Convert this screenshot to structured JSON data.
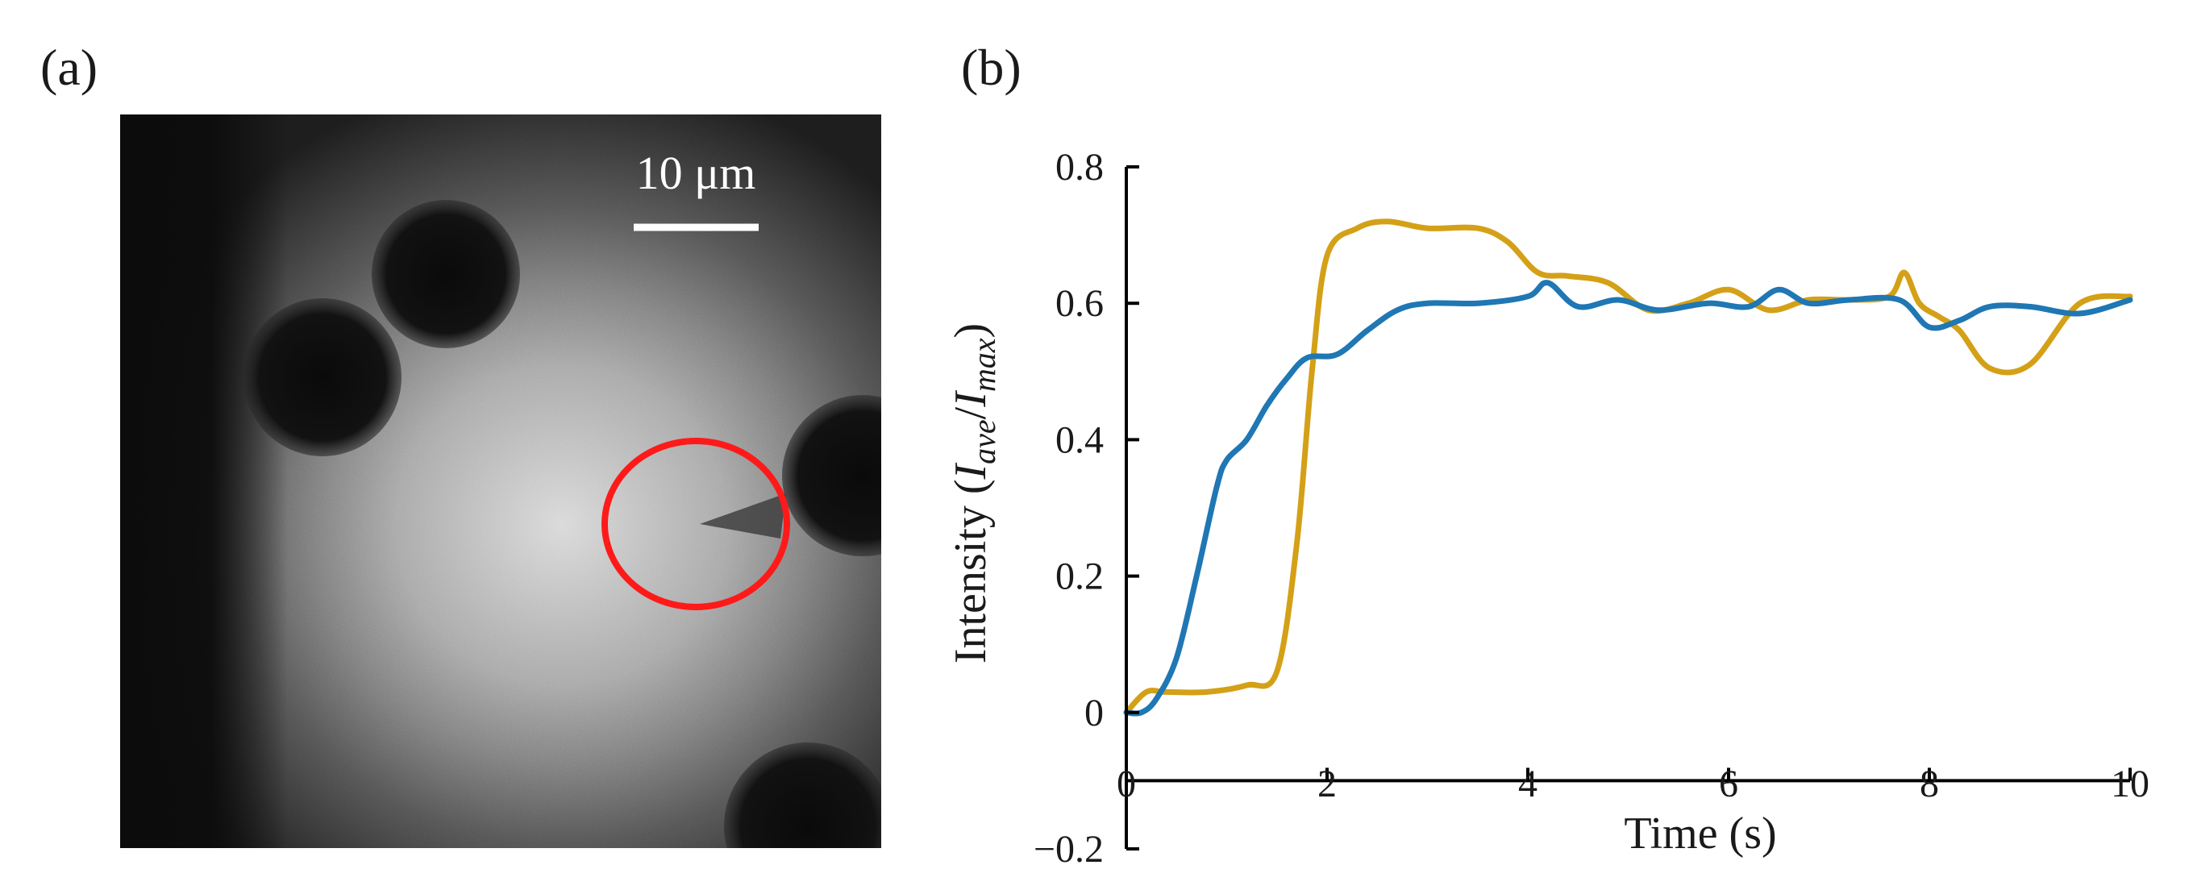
{
  "panel_a": {
    "label": "(a)",
    "scale_bar_text": "10 μm",
    "highlight_color": "#ff1a1a"
  },
  "panel_b": {
    "label": "(b)"
  },
  "chart_data": {
    "type": "line",
    "xlabel": "Time (s)",
    "ylabel_prefix": "Intensity (",
    "ylabel_i1": "I",
    "ylabel_sub1": "ave",
    "ylabel_slash": "/",
    "ylabel_i2": "I",
    "ylabel_sub2": "max",
    "ylabel_suffix": ")",
    "xlim": [
      0,
      10
    ],
    "ylim": [
      -0.2,
      0.8
    ],
    "xticks": [
      0,
      2,
      4,
      6,
      8,
      10
    ],
    "xtick_labels": [
      "0",
      "2",
      "4",
      "6",
      "8",
      "10"
    ],
    "yticks": [
      0.8,
      0.6,
      0.4,
      0.2,
      0,
      -0.2
    ],
    "ytick_labels": [
      "0.8",
      "0.6",
      "0.4",
      "0.2",
      "0",
      "−0.2"
    ],
    "grid": false,
    "series": [
      {
        "name": "gold",
        "color": "#d4a017",
        "x": [
          0,
          0.2,
          0.4,
          0.8,
          1.2,
          1.5,
          1.7,
          1.85,
          2.0,
          2.3,
          2.6,
          3.0,
          3.5,
          3.8,
          4.1,
          4.4,
          4.8,
          5.2,
          5.6,
          6.0,
          6.4,
          6.8,
          7.2,
          7.6,
          7.75,
          7.9,
          8.1,
          8.3,
          8.6,
          9.0,
          9.5,
          10
        ],
        "y": [
          0.0,
          0.03,
          0.03,
          0.03,
          0.04,
          0.06,
          0.25,
          0.5,
          0.67,
          0.71,
          0.72,
          0.71,
          0.71,
          0.69,
          0.645,
          0.64,
          0.63,
          0.59,
          0.6,
          0.62,
          0.59,
          0.605,
          0.605,
          0.61,
          0.645,
          0.6,
          0.58,
          0.56,
          0.505,
          0.51,
          0.6,
          0.61
        ]
      },
      {
        "name": "blue",
        "color": "#1f77b4",
        "x": [
          0,
          0.15,
          0.3,
          0.5,
          0.7,
          0.9,
          1.0,
          1.2,
          1.4,
          1.6,
          1.8,
          2.1,
          2.4,
          2.7,
          3.0,
          3.5,
          4.0,
          4.2,
          4.5,
          4.9,
          5.3,
          5.8,
          6.2,
          6.5,
          6.8,
          7.2,
          7.7,
          8.0,
          8.3,
          8.6,
          9.0,
          9.5,
          10
        ],
        "y": [
          0.0,
          0.0,
          0.02,
          0.08,
          0.2,
          0.33,
          0.37,
          0.4,
          0.45,
          0.49,
          0.52,
          0.525,
          0.56,
          0.59,
          0.6,
          0.6,
          0.61,
          0.63,
          0.595,
          0.605,
          0.59,
          0.6,
          0.595,
          0.62,
          0.6,
          0.605,
          0.605,
          0.565,
          0.575,
          0.595,
          0.595,
          0.585,
          0.605
        ]
      }
    ]
  }
}
